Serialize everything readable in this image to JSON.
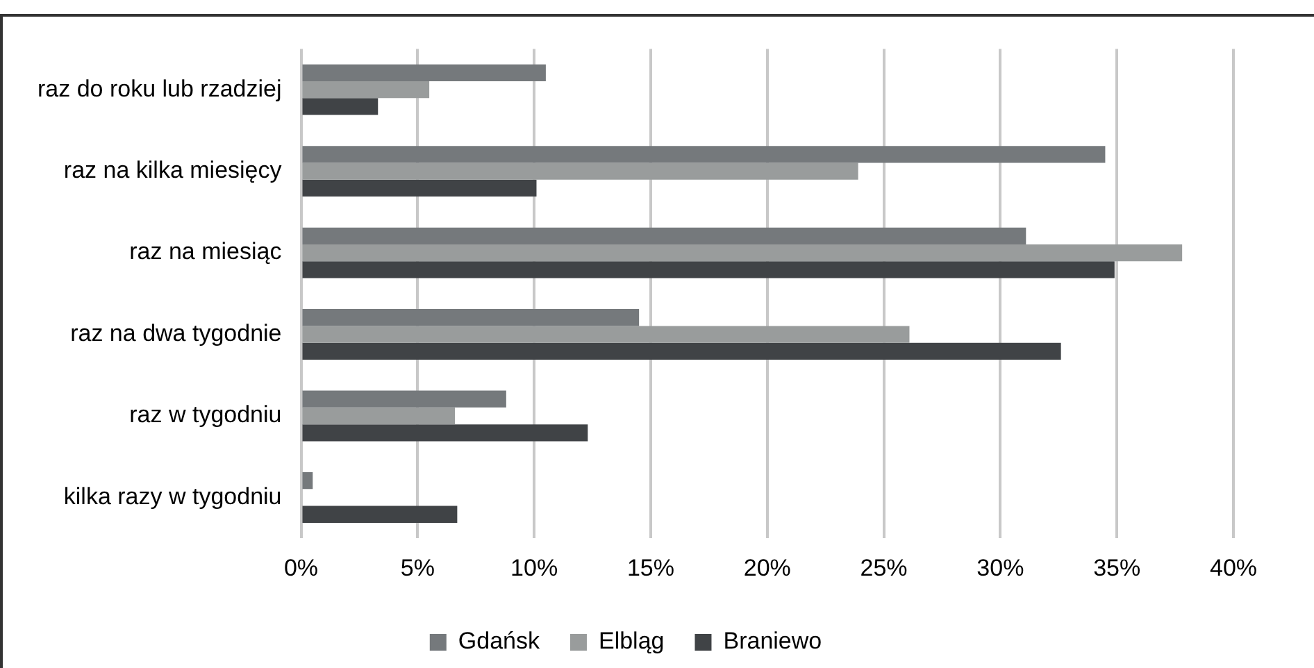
{
  "chart_data": {
    "type": "bar",
    "orientation": "horizontal",
    "categories": [
      "raz do roku lub rzadziej",
      "raz na kilka miesięcy",
      "raz na miesiąc",
      "raz na dwa tygodnie",
      "raz w tygodniu",
      "kilka razy w tygodniu"
    ],
    "series": [
      {
        "name": "Gdańsk",
        "color": "#75797c",
        "values": [
          10.5,
          34.5,
          31.1,
          14.5,
          8.8,
          0.5
        ]
      },
      {
        "name": "Elbląg",
        "color": "#999c9c",
        "values": [
          5.5,
          23.9,
          37.8,
          26.1,
          6.6,
          0
        ]
      },
      {
        "name": "Braniewo",
        "color": "#404346",
        "values": [
          3.3,
          10.1,
          34.9,
          32.6,
          12.3,
          6.7
        ]
      }
    ],
    "xlim": [
      0,
      40
    ],
    "xticks": [
      {
        "value": 0,
        "label": "0%"
      },
      {
        "value": 5,
        "label": "5%"
      },
      {
        "value": 10,
        "label": "10%"
      },
      {
        "value": 15,
        "label": "15%"
      },
      {
        "value": 20,
        "label": "20%"
      },
      {
        "value": 25,
        "label": "25%"
      },
      {
        "value": 30,
        "label": "30%"
      },
      {
        "value": 35,
        "label": "35%"
      },
      {
        "value": 40,
        "label": "40%"
      }
    ],
    "grid": "x",
    "legend": "bottom"
  }
}
